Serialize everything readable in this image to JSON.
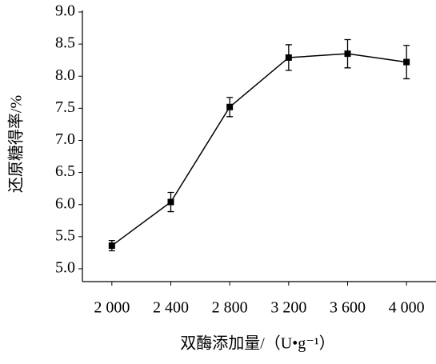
{
  "chart_data": {
    "type": "line",
    "x_label": "双酶添加量/（U•g⁻¹）",
    "y_label": "还原糖得率/%",
    "x": [
      2000,
      2400,
      2800,
      3200,
      3600,
      4000
    ],
    "values": [
      5.36,
      6.04,
      7.52,
      8.29,
      8.35,
      8.22
    ],
    "errors": [
      0.08,
      0.15,
      0.15,
      0.2,
      0.22,
      0.26
    ],
    "color": "#000000",
    "xlim": [
      1800,
      4200
    ],
    "xticks": [
      {
        "value": 2000,
        "label": "2 000"
      },
      {
        "value": 2400,
        "label": "2 400"
      },
      {
        "value": 2800,
        "label": "2 800"
      },
      {
        "value": 3200,
        "label": "3 200"
      },
      {
        "value": 3600,
        "label": "3 600"
      },
      {
        "value": 4000,
        "label": "4 000"
      }
    ],
    "ylim": [
      4.8,
      9.0
    ],
    "yticks": [
      {
        "value": 5,
        "label": "5.0"
      },
      5.5,
      {
        "value": 6,
        "label": "6.0"
      },
      6.5,
      {
        "value": 7,
        "label": "7.0"
      },
      7.5,
      {
        "value": 8,
        "label": "8.0"
      },
      8.5,
      {
        "value": 9,
        "label": "9.0"
      }
    ]
  }
}
